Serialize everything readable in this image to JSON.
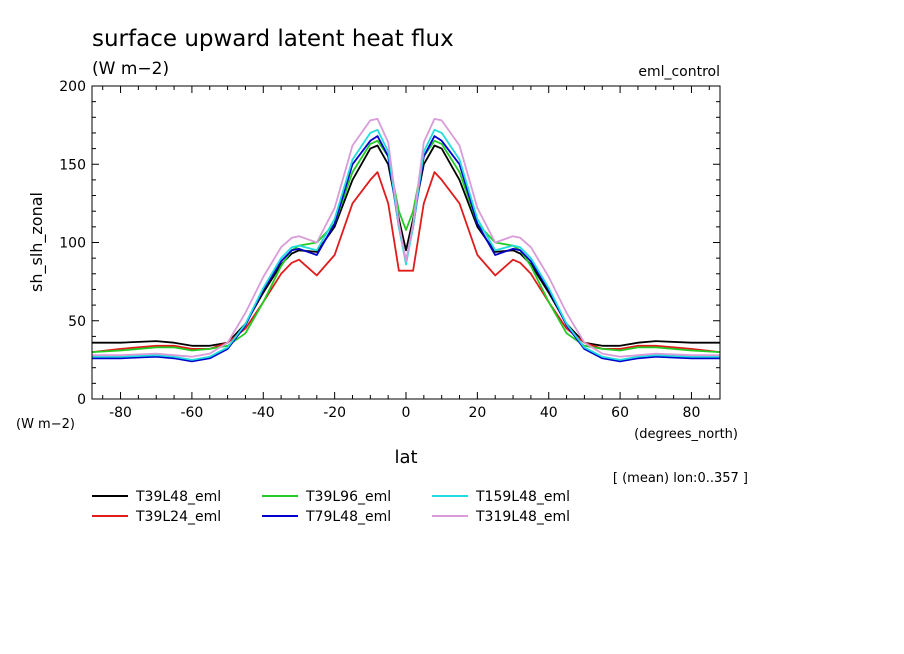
{
  "chart_data": {
    "type": "line",
    "title": "surface upward latent heat flux",
    "units_label": "(W m−2)",
    "experiment": "eml_control",
    "ylabel": "sh_slh_zonal",
    "xlabel": "lat",
    "xunits": "(degrees_north)",
    "yunits": "(W m−2)",
    "note": "[ (mean) lon:0..357 ]",
    "xlim": [
      -88,
      88
    ],
    "ylim": [
      0,
      200
    ],
    "xticks": [
      -80,
      -60,
      -40,
      -20,
      0,
      20,
      40,
      60,
      80
    ],
    "yticks": [
      0,
      50,
      100,
      150,
      200
    ],
    "grid": false,
    "legend_position": "bottom",
    "x": [
      -88,
      -80,
      -70,
      -65,
      -60,
      -55,
      -50,
      -45,
      -40,
      -35,
      -32,
      -30,
      -25,
      -20,
      -15,
      -10,
      -8,
      -5,
      -2,
      0,
      2,
      5,
      8,
      10,
      15,
      20,
      25,
      30,
      32,
      35,
      40,
      45,
      50,
      55,
      60,
      65,
      70,
      80,
      88
    ],
    "series": [
      {
        "name": "T39L48_eml",
        "color": "#000000",
        "values": [
          36,
          36,
          37,
          36,
          34,
          34,
          36,
          48,
          68,
          86,
          93,
          95,
          94,
          110,
          140,
          160,
          162,
          150,
          115,
          95,
          115,
          150,
          162,
          160,
          140,
          110,
          94,
          95,
          93,
          86,
          68,
          48,
          36,
          34,
          34,
          36,
          37,
          36,
          36
        ]
      },
      {
        "name": "T39L24_eml",
        "color": "#e01c1c",
        "values": [
          30,
          32,
          34,
          34,
          32,
          32,
          36,
          45,
          62,
          80,
          87,
          89,
          79,
          92,
          125,
          140,
          145,
          125,
          82,
          82,
          82,
          125,
          145,
          140,
          125,
          92,
          79,
          89,
          87,
          80,
          62,
          45,
          36,
          32,
          32,
          34,
          34,
          32,
          30
        ]
      },
      {
        "name": "T39L96_eml",
        "color": "#22cc22",
        "values": [
          30,
          31,
          33,
          33,
          31,
          32,
          34,
          42,
          62,
          85,
          95,
          98,
          100,
          112,
          145,
          163,
          165,
          155,
          120,
          108,
          120,
          155,
          165,
          163,
          145,
          112,
          100,
          98,
          95,
          85,
          62,
          42,
          34,
          32,
          31,
          33,
          33,
          31,
          30
        ]
      },
      {
        "name": "T79L48_eml",
        "color": "#0000cc",
        "values": [
          26,
          26,
          27,
          26,
          24,
          26,
          32,
          47,
          70,
          88,
          95,
          96,
          92,
          112,
          150,
          165,
          168,
          155,
          110,
          88,
          110,
          155,
          168,
          165,
          150,
          112,
          92,
          96,
          95,
          88,
          70,
          47,
          32,
          26,
          24,
          26,
          27,
          26,
          26
        ]
      },
      {
        "name": "T159L48_eml",
        "color": "#22dddd",
        "values": [
          27,
          27,
          28,
          27,
          25,
          27,
          33,
          48,
          71,
          90,
          97,
          98,
          95,
          115,
          153,
          170,
          172,
          158,
          110,
          86,
          110,
          158,
          172,
          170,
          153,
          115,
          95,
          98,
          97,
          90,
          71,
          48,
          33,
          27,
          25,
          27,
          28,
          27,
          27
        ]
      },
      {
        "name": "T319L48_eml",
        "color": "#d99bd9",
        "values": [
          28,
          28,
          29,
          28,
          27,
          29,
          36,
          55,
          78,
          97,
          103,
          104,
          100,
          122,
          162,
          178,
          179,
          164,
          112,
          88,
          112,
          164,
          179,
          178,
          162,
          122,
          100,
          104,
          103,
          97,
          78,
          55,
          36,
          29,
          27,
          28,
          29,
          28,
          28
        ]
      }
    ]
  }
}
